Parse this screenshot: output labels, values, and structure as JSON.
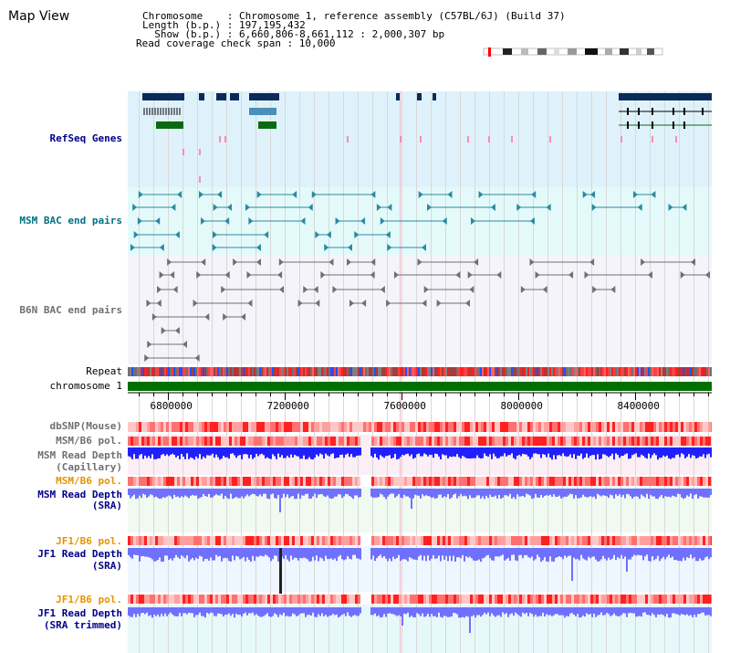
{
  "page": {
    "title": "Map View"
  },
  "header": {
    "chromosome_line": "Chromosome    : Chromosome 1, reference assembly (C57BL/6J) (Build 37)",
    "length_line": "Length (b.p.) : 197,195,432",
    "show_line": "  Show (b.p.) : 6,660,806-8,661,112 : 2,000,307 bp",
    "coverage_line": "Read coverage check span : 10,000"
  },
  "tracks": {
    "refseq": "RefSeq Genes",
    "msm_bac": "MSM BAC end pairs",
    "b6n_bac": "B6N BAC end pairs",
    "repeat": "Repeat",
    "chromosome": "chromosome 1",
    "dbsnp": "dbSNP(Mouse)",
    "msm_b6_pol": "MSM/B6 pol.",
    "msm_depth_cap_1": "MSM Read Depth",
    "msm_depth_cap_2": "(Capillary)",
    "msm_b6_pol_2": "MSM/B6 pol.",
    "msm_depth_sra_1": "MSM Read Depth",
    "msm_depth_sra_2": "(SRA)",
    "jf1_b6_pol": "JF1/B6 pol.",
    "jf1_depth_sra_1": "JF1 Read Depth",
    "jf1_depth_sra_2": "(SRA)",
    "jf1_b6_pol_2": "JF1/B6 pol.",
    "jf1_depth_trim_1": "JF1 Read Depth",
    "jf1_depth_trim_2": "(SRA trimmed)"
  },
  "axis": {
    "start": 6660806,
    "end": 8661112,
    "ticks": [
      {
        "value": 6800000,
        "label": "6800000"
      },
      {
        "value": 7200000,
        "label": "7200000"
      },
      {
        "value": 7600000,
        "label": "7600000"
      },
      {
        "value": 8000000,
        "label": "8000000"
      },
      {
        "value": 8400000,
        "label": "8400000"
      }
    ]
  },
  "colors": {
    "refseq_bg": "#dff2fb",
    "msm_bg": "#e4fafa",
    "b6n_bg": "#f4f4fa",
    "gene_dark": "#0a2a5a",
    "gene_green": "#0a6a14",
    "gene_light": "#4a90b8",
    "msm_bac": "#2a8aa0",
    "b6n_bac": "#707070",
    "chrom_bar": "#007000",
    "snp": "#ff0000",
    "depth_dark": "#2020ff",
    "depth_light": "#7070ff"
  }
}
